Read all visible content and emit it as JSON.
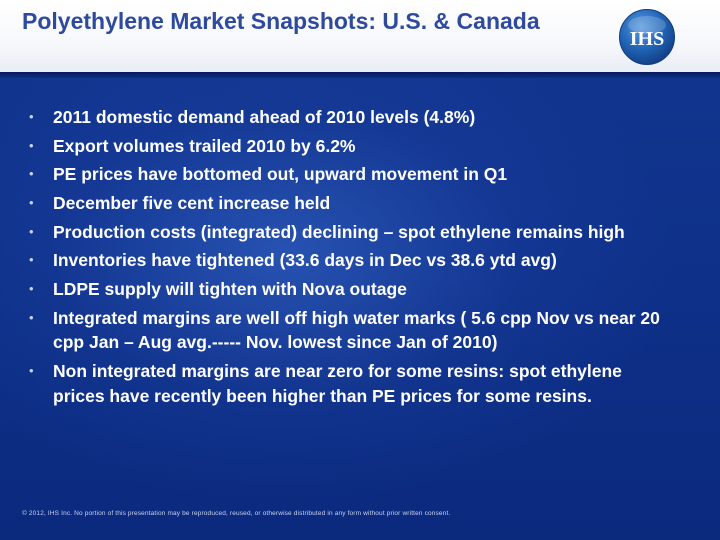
{
  "header": {
    "title": "Polyethylene Market Snapshots: U.S. & Canada",
    "logo_text": "IHS"
  },
  "bullets": [
    "2011 domestic demand ahead of 2010 levels (4.8%)",
    "Export volumes trailed 2010 by 6.2%",
    "PE prices have bottomed out, upward movement in Q1",
    "December five cent increase  held",
    "Production costs  (integrated) declining – spot ethylene remains high",
    "Inventories  have tightened  (33.6 days in Dec vs 38.6 ytd avg)",
    "LDPE  supply will tighten with Nova outage",
    "Integrated margins are well off high water marks ( 5.6 cpp Nov vs near 20 cpp Jan – Aug avg.----- Nov. lowest since Jan of 2010)",
    "Non integrated margins are  near  zero for some resins: spot ethylene prices have recently been higher than PE prices for some resins."
  ],
  "footer": {
    "copyright": "© 2012, IHS Inc. No portion of this presentation may be reproduced, reused, or otherwise distributed in any form without prior written consent."
  },
  "colors": {
    "background": "#0f318a",
    "title": "#2e4a9e",
    "logo": "#1f5fb0",
    "text": "#ffffff"
  },
  "icons": [
    "ihs-logo-icon",
    "bullet-dot-icon"
  ]
}
